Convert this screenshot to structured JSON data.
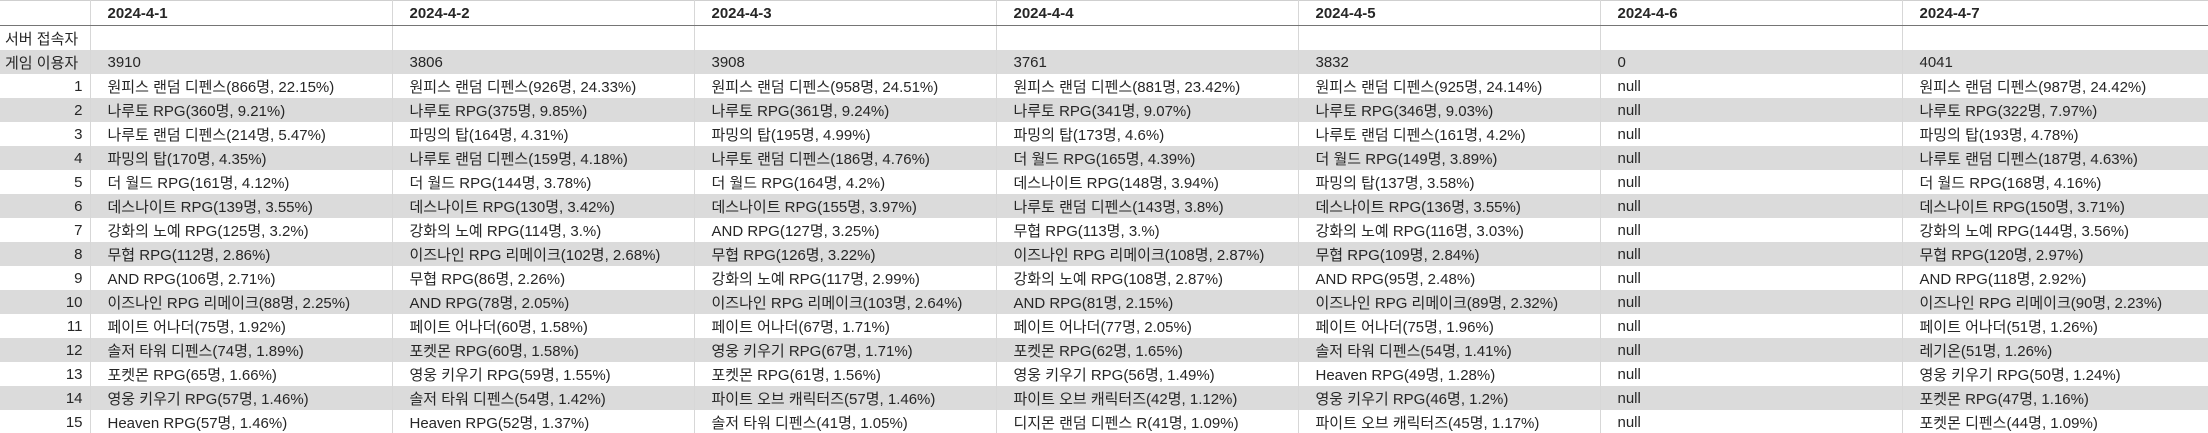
{
  "header": {
    "columns": [
      "2024-4-1",
      "2024-4-2",
      "2024-4-3",
      "2024-4-4",
      "2024-4-5",
      "2024-4-6",
      "2024-4-7"
    ]
  },
  "rows": {
    "server_visitors_label": "서버 접속자",
    "game_users_label": "게임 이용자",
    "game_users": [
      "3910",
      "3806",
      "3908",
      "3761",
      "3832",
      "0",
      "4041"
    ],
    "ranks": [
      {
        "rank": "1",
        "values": [
          "원피스 랜덤 디펜스(866명, 22.15%)",
          "원피스 랜덤 디펜스(926명, 24.33%)",
          "원피스 랜덤 디펜스(958명, 24.51%)",
          "원피스 랜덤 디펜스(881명, 23.42%)",
          "원피스 랜덤 디펜스(925명, 24.14%)",
          "null",
          "원피스 랜덤 디펜스(987명, 24.42%)"
        ]
      },
      {
        "rank": "2",
        "values": [
          "나루토 RPG(360명, 9.21%)",
          "나루토 RPG(375명, 9.85%)",
          "나루토 RPG(361명, 9.24%)",
          "나루토 RPG(341명, 9.07%)",
          "나루토 RPG(346명, 9.03%)",
          "null",
          "나루토 RPG(322명, 7.97%)"
        ]
      },
      {
        "rank": "3",
        "values": [
          "나루토 랜덤 디펜스(214명, 5.47%)",
          "파밍의 탑(164명, 4.31%)",
          "파밍의 탑(195명, 4.99%)",
          "파밍의 탑(173명, 4.6%)",
          "나루토 랜덤 디펜스(161명, 4.2%)",
          "null",
          "파밍의 탑(193명, 4.78%)"
        ]
      },
      {
        "rank": "4",
        "values": [
          "파밍의 탑(170명, 4.35%)",
          "나루토 랜덤 디펜스(159명, 4.18%)",
          "나루토 랜덤 디펜스(186명, 4.76%)",
          "더 월드 RPG(165명, 4.39%)",
          "더 월드 RPG(149명, 3.89%)",
          "null",
          "나루토 랜덤 디펜스(187명, 4.63%)"
        ]
      },
      {
        "rank": "5",
        "values": [
          "더 월드 RPG(161명, 4.12%)",
          "더 월드 RPG(144명, 3.78%)",
          "더 월드 RPG(164명, 4.2%)",
          "데스나이트 RPG(148명, 3.94%)",
          "파밍의 탑(137명, 3.58%)",
          "null",
          "더 월드 RPG(168명, 4.16%)"
        ]
      },
      {
        "rank": "6",
        "values": [
          "데스나이트 RPG(139명, 3.55%)",
          "데스나이트 RPG(130명, 3.42%)",
          "데스나이트 RPG(155명, 3.97%)",
          "나루토 랜덤 디펜스(143명, 3.8%)",
          "데스나이트 RPG(136명, 3.55%)",
          "null",
          "데스나이트 RPG(150명, 3.71%)"
        ]
      },
      {
        "rank": "7",
        "values": [
          "강화의 노예 RPG(125명, 3.2%)",
          "강화의 노예 RPG(114명, 3.%)",
          "AND RPG(127명, 3.25%)",
          "무협 RPG(113명, 3.%)",
          "강화의 노예 RPG(116명, 3.03%)",
          "null",
          "강화의 노예 RPG(144명, 3.56%)"
        ]
      },
      {
        "rank": "8",
        "values": [
          "무협 RPG(112명, 2.86%)",
          "이즈나인 RPG 리메이크(102명, 2.68%)",
          "무협 RPG(126명, 3.22%)",
          "이즈나인 RPG 리메이크(108명, 2.87%)",
          "무협 RPG(109명, 2.84%)",
          "null",
          "무협 RPG(120명, 2.97%)"
        ]
      },
      {
        "rank": "9",
        "values": [
          "AND RPG(106명, 2.71%)",
          "무협 RPG(86명, 2.26%)",
          "강화의 노예 RPG(117명, 2.99%)",
          "강화의 노예 RPG(108명, 2.87%)",
          "AND RPG(95명, 2.48%)",
          "null",
          "AND RPG(118명, 2.92%)"
        ]
      },
      {
        "rank": "10",
        "values": [
          "이즈나인 RPG 리메이크(88명, 2.25%)",
          "AND RPG(78명, 2.05%)",
          "이즈나인 RPG 리메이크(103명, 2.64%)",
          "AND RPG(81명, 2.15%)",
          "이즈나인 RPG 리메이크(89명, 2.32%)",
          "null",
          "이즈나인 RPG 리메이크(90명, 2.23%)"
        ]
      },
      {
        "rank": "11",
        "values": [
          "페이트 어나더(75명, 1.92%)",
          "페이트 어나더(60명, 1.58%)",
          "페이트 어나더(67명, 1.71%)",
          "페이트 어나더(77명, 2.05%)",
          "페이트 어나더(75명, 1.96%)",
          "null",
          "페이트 어나더(51명, 1.26%)"
        ]
      },
      {
        "rank": "12",
        "values": [
          "솔저 타워 디펜스(74명, 1.89%)",
          "포켓몬 RPG(60명, 1.58%)",
          "영웅 키우기 RPG(67명, 1.71%)",
          "포켓몬 RPG(62명, 1.65%)",
          "솔저 타워 디펜스(54명, 1.41%)",
          "null",
          "레기온(51명, 1.26%)"
        ]
      },
      {
        "rank": "13",
        "values": [
          "포켓몬 RPG(65명, 1.66%)",
          "영웅 키우기 RPG(59명, 1.55%)",
          "포켓몬 RPG(61명, 1.56%)",
          "영웅 키우기 RPG(56명, 1.49%)",
          "Heaven RPG(49명, 1.28%)",
          "null",
          "영웅 키우기 RPG(50명, 1.24%)"
        ]
      },
      {
        "rank": "14",
        "values": [
          "영웅 키우기 RPG(57명, 1.46%)",
          "솔저 타워 디펜스(54명, 1.42%)",
          "파이트 오브 캐릭터즈(57명, 1.46%)",
          "파이트 오브 캐릭터즈(42명, 1.12%)",
          "영웅 키우기 RPG(46명, 1.2%)",
          "null",
          "포켓몬 RPG(47명, 1.16%)"
        ]
      },
      {
        "rank": "15",
        "values": [
          "Heaven RPG(57명, 1.46%)",
          "Heaven RPG(52명, 1.37%)",
          "솔저 타워 디펜스(41명, 1.05%)",
          "디지몬 랜덤 디펜스 R(41명, 1.09%)",
          "파이트 오브 캐릭터즈(45명, 1.17%)",
          "null",
          "포켓몬 디펜스(44명, 1.09%)"
        ]
      }
    ]
  },
  "colors": {
    "band_gray": "#dbdbdb",
    "grid_line": "#d7d7d7",
    "header_rule": "#757575",
    "text": "#262626",
    "background": "#ffffff"
  }
}
